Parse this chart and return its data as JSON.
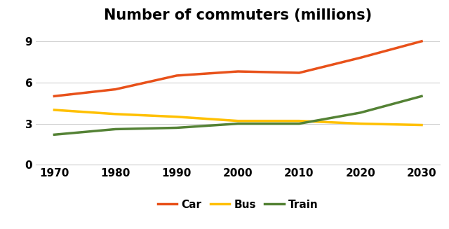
{
  "title": "Number of commuters (millions)",
  "years": [
    1970,
    1980,
    1990,
    2000,
    2010,
    2020,
    2030
  ],
  "car": [
    5.0,
    5.5,
    6.5,
    6.8,
    6.7,
    7.8,
    9.0
  ],
  "bus": [
    4.0,
    3.7,
    3.5,
    3.2,
    3.2,
    3.0,
    2.9
  ],
  "train": [
    2.2,
    2.6,
    2.7,
    3.0,
    3.0,
    3.8,
    5.0
  ],
  "car_color": "#E8511A",
  "bus_color": "#FFC000",
  "train_color": "#548235",
  "line_width": 2.5,
  "ylim": [
    0,
    10
  ],
  "yticks": [
    0,
    3,
    6,
    9
  ],
  "xticks": [
    1970,
    1980,
    1990,
    2000,
    2010,
    2020,
    2030
  ],
  "legend_labels": [
    "Car",
    "Bus",
    "Train"
  ],
  "title_fontsize": 15,
  "tick_fontsize": 11,
  "legend_fontsize": 11,
  "background_color": "#ffffff",
  "grid_color": "#d0d0d0"
}
